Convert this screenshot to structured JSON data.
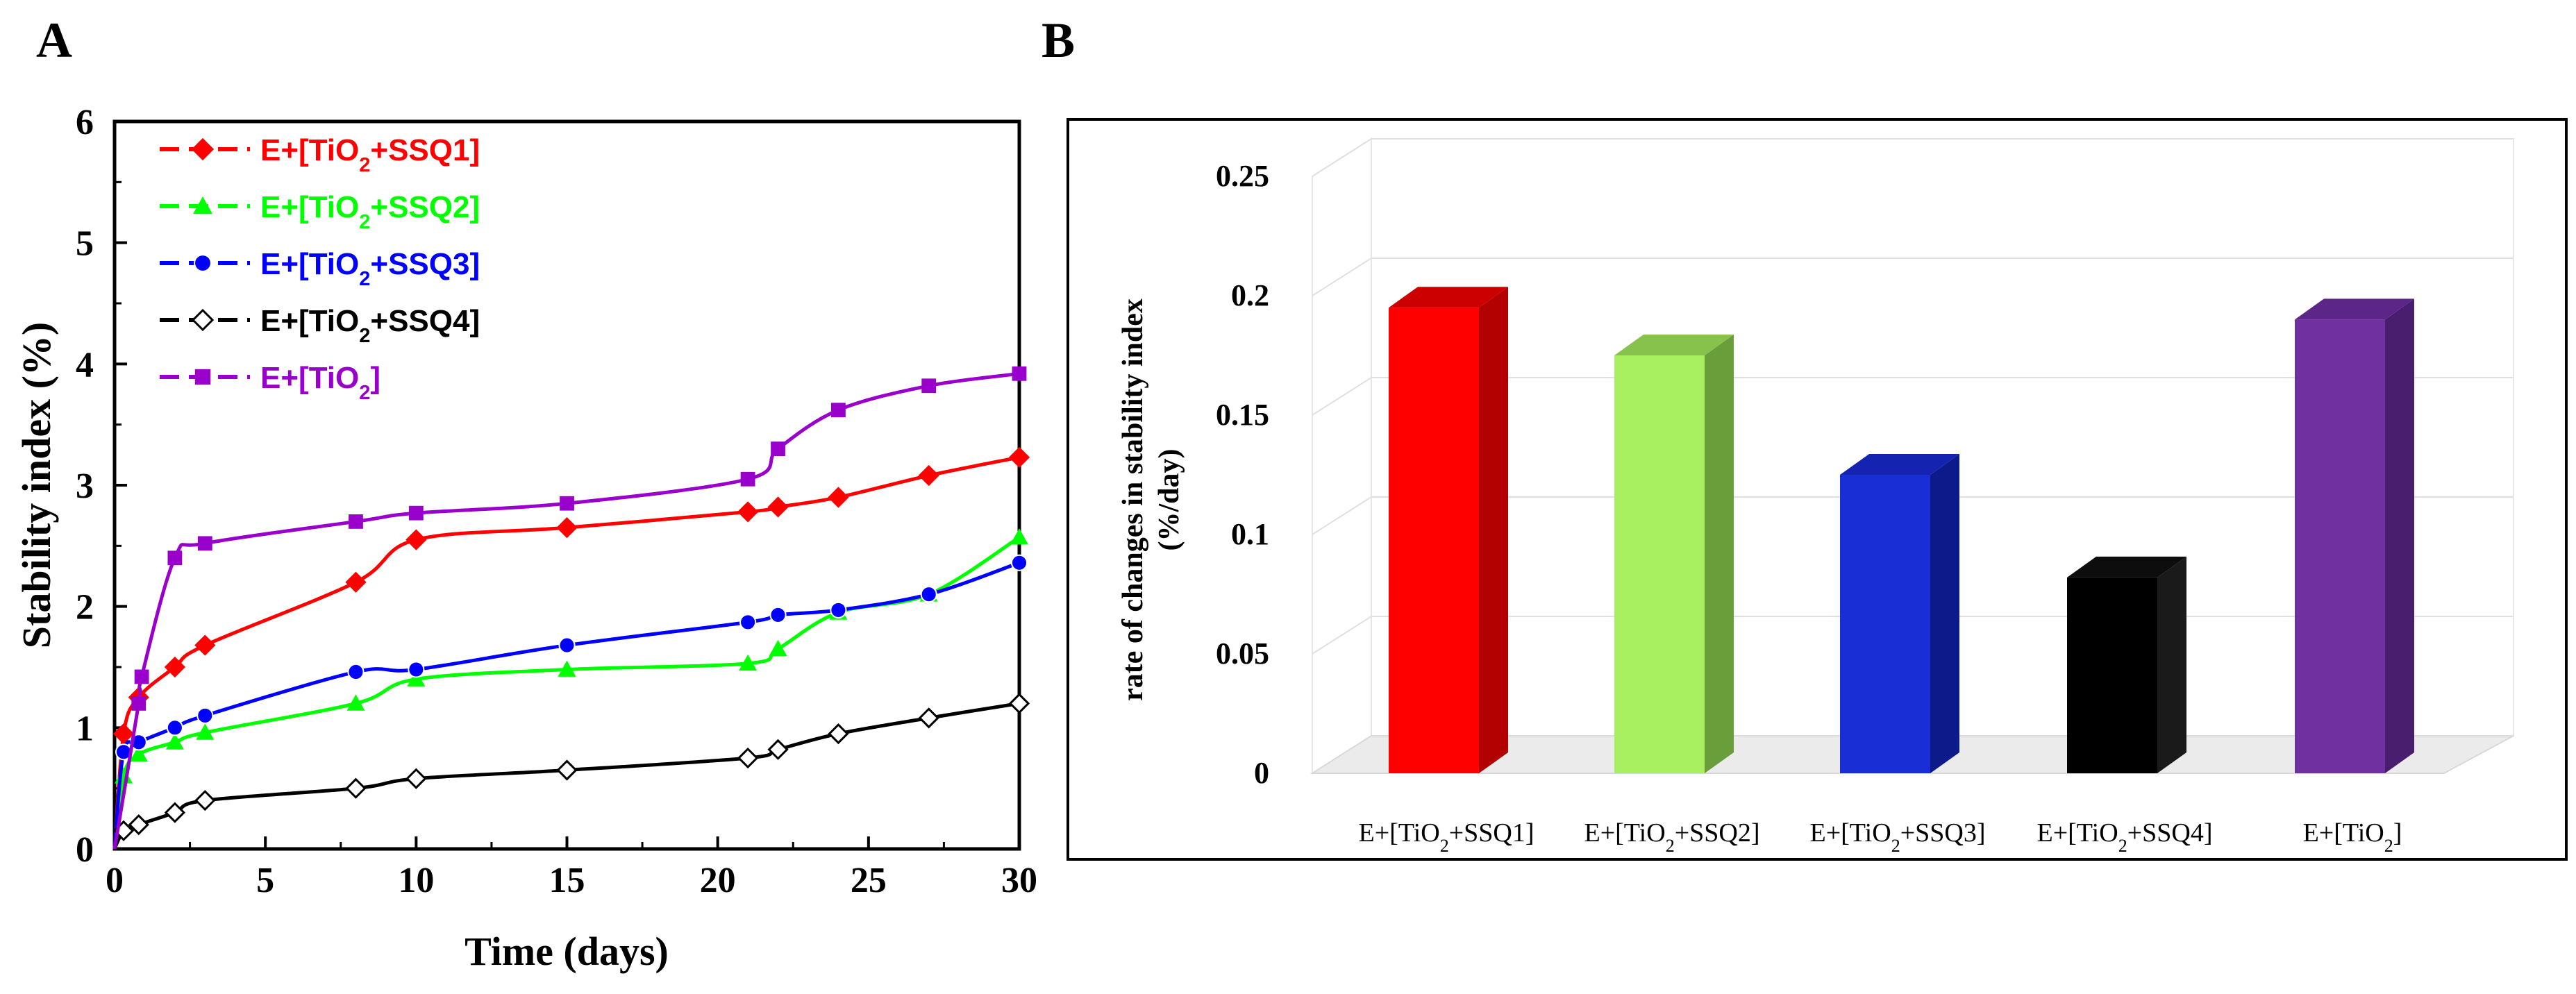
{
  "panels": {
    "a_label": "A",
    "b_label": "B"
  },
  "chart_data": [
    {
      "type": "line",
      "panel": "A",
      "title": "",
      "xlabel": "Time (days)",
      "ylabel": "Stability index (%)",
      "xlim": [
        0,
        30
      ],
      "ylim": [
        0,
        6
      ],
      "xticks": [
        "0",
        "5",
        "10",
        "15",
        "20",
        "25",
        "30"
      ],
      "yticks": [
        "0",
        "1",
        "2",
        "3",
        "4",
        "5",
        "6"
      ],
      "legend_position": "top-left",
      "series": [
        {
          "name": "E+[TiO2+SSQ1]",
          "legend_main": "E+[TiO",
          "legend_sub": "2",
          "legend_tail": "+SSQ1]",
          "color": "#ff0000",
          "marker": "diamond",
          "x": [
            0,
            0.3,
            0.8,
            2,
            3,
            8,
            10,
            15,
            21,
            22,
            24,
            27,
            30
          ],
          "y": [
            0,
            0.95,
            1.25,
            1.5,
            1.68,
            2.2,
            2.55,
            2.65,
            2.78,
            2.82,
            2.9,
            3.08,
            3.23
          ]
        },
        {
          "name": "E+[TiO2+SSQ2]",
          "legend_main": "E+[TiO",
          "legend_sub": "2",
          "legend_tail": "+SSQ2]",
          "color": "#00ff00",
          "marker": "triangle",
          "x": [
            0,
            0.3,
            0.8,
            2,
            3,
            8,
            10,
            15,
            21,
            22,
            24,
            27,
            30
          ],
          "y": [
            0,
            0.6,
            0.78,
            0.88,
            0.96,
            1.2,
            1.4,
            1.48,
            1.53,
            1.65,
            1.95,
            2.1,
            2.57
          ]
        },
        {
          "name": "E+[TiO2+SSQ3]",
          "legend_main": "E+[TiO",
          "legend_sub": "2",
          "legend_tail": "+SSQ3]",
          "color": "#0000ff",
          "marker": "circle",
          "x": [
            0,
            0.3,
            0.8,
            2,
            3,
            8,
            10,
            15,
            21,
            22,
            24,
            27,
            30
          ],
          "y": [
            0,
            0.8,
            0.88,
            1.0,
            1.1,
            1.46,
            1.48,
            1.68,
            1.87,
            1.93,
            1.97,
            2.1,
            2.36
          ]
        },
        {
          "name": "E+[TiO2+SSQ4]",
          "legend_main": "E+[TiO",
          "legend_sub": "2",
          "legend_tail": "+SSQ4]",
          "color": "#000000",
          "marker": "open-diamond",
          "x": [
            0,
            0.3,
            0.8,
            2,
            3,
            8,
            10,
            15,
            21,
            22,
            24,
            27,
            30
          ],
          "y": [
            0,
            0.15,
            0.2,
            0.3,
            0.4,
            0.5,
            0.58,
            0.65,
            0.75,
            0.82,
            0.95,
            1.08,
            1.2
          ]
        },
        {
          "name": "E+[TiO2]",
          "legend_main": "E+[TiO",
          "legend_sub": "2",
          "legend_tail": "]",
          "color": "#9900cc",
          "marker": "square",
          "x": [
            0,
            0.8,
            0.9,
            2,
            3,
            8,
            10,
            15,
            21,
            22,
            24,
            27,
            30
          ],
          "y": [
            0,
            1.2,
            1.42,
            2.4,
            2.52,
            2.7,
            2.77,
            2.85,
            3.05,
            3.3,
            3.62,
            3.82,
            3.92
          ]
        }
      ]
    },
    {
      "type": "bar",
      "panel": "B",
      "title": "",
      "xlabel": "",
      "ylabel_line1": "rate of changes in stability index",
      "ylabel_line2": "(%/day)",
      "ylim": [
        0,
        0.25
      ],
      "yticks": [
        "0",
        "0.05",
        "0.1",
        "0.15",
        "0.2",
        "0.25"
      ],
      "categories": [
        {
          "main": "E+[TiO",
          "sub": "2",
          "tail": "+SSQ1]"
        },
        {
          "main": "E+[TiO",
          "sub": "2",
          "tail": "+SSQ2]"
        },
        {
          "main": "E+[TiO",
          "sub": "2",
          "tail": "+SSQ3]"
        },
        {
          "main": "E+[TiO",
          "sub": "2",
          "tail": "+SSQ4]"
        },
        {
          "main": "E+[TiO",
          "sub": "2",
          "tail": "]"
        }
      ],
      "values": [
        0.195,
        0.175,
        0.125,
        0.082,
        0.19
      ],
      "colors": [
        {
          "front": "#ff0000",
          "side": "#b30000",
          "top": "#cc0000"
        },
        {
          "front": "#a8f060",
          "side": "#6a9e3a",
          "top": "#86c24c"
        },
        {
          "front": "#1a2ed6",
          "side": "#0d1a8a",
          "top": "#1424b0"
        },
        {
          "front": "#000000",
          "side": "#1a1a1a",
          "top": "#0d0d0d"
        },
        {
          "front": "#7030a0",
          "side": "#4a1e6e",
          "top": "#5c2688"
        }
      ]
    }
  ]
}
